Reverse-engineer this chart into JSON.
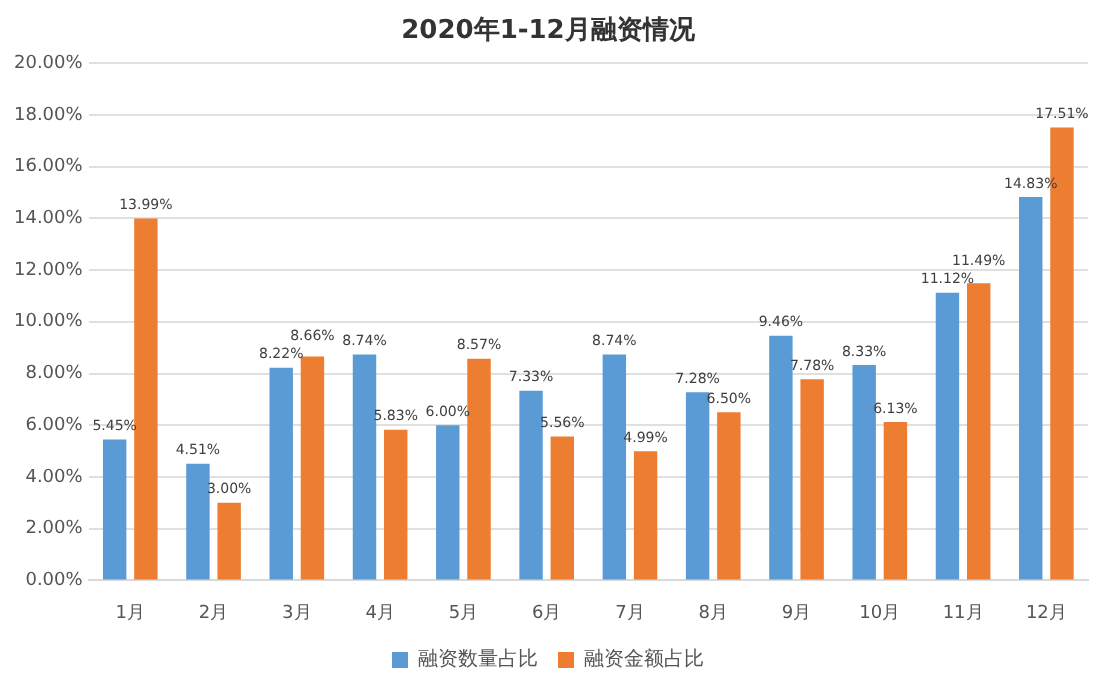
{
  "chart_data": {
    "type": "bar",
    "title": "2020年1-12月融资情况",
    "categories": [
      "1月",
      "2月",
      "3月",
      "4月",
      "5月",
      "6月",
      "7月",
      "8月",
      "9月",
      "10月",
      "11月",
      "12月"
    ],
    "series": [
      {
        "name": "融资数量占比",
        "color": "#5b9bd5",
        "values": [
          5.45,
          4.51,
          8.22,
          8.74,
          6.0,
          7.33,
          8.74,
          7.28,
          9.46,
          8.33,
          11.12,
          14.83
        ],
        "value_labels": [
          "5.45%",
          "4.51%",
          "8.22%",
          "8.74%",
          "6.00%",
          "7.33%",
          "8.74%",
          "7.28%",
          "9.46%",
          "8.33%",
          "11.12%",
          "14.83%"
        ]
      },
      {
        "name": "融资金额占比",
        "color": "#ed7d31",
        "values": [
          13.99,
          3.0,
          8.66,
          5.83,
          8.57,
          5.56,
          4.99,
          6.5,
          7.78,
          6.13,
          11.49,
          17.51
        ],
        "value_labels": [
          "13.99%",
          "3.00%",
          "8.66%",
          "5.83%",
          "8.57%",
          "5.56%",
          "4.99%",
          "6.50%",
          "7.78%",
          "6.13%",
          "11.49%",
          "17.51%"
        ]
      }
    ],
    "ylim": [
      0,
      20
    ],
    "yticks": [
      {
        "value": 0,
        "label": "0.00%"
      },
      {
        "value": 2,
        "label": "2.00%"
      },
      {
        "value": 4,
        "label": "4.00%"
      },
      {
        "value": 6,
        "label": "6.00%"
      },
      {
        "value": 8,
        "label": "8.00%"
      },
      {
        "value": 10,
        "label": "10.00%"
      },
      {
        "value": 12,
        "label": "12.00%"
      },
      {
        "value": 14,
        "label": "14.00%"
      },
      {
        "value": 16,
        "label": "16.00%"
      },
      {
        "value": 18,
        "label": "18.00%"
      },
      {
        "value": 20,
        "label": "20.00%"
      }
    ],
    "grid": "y",
    "legend": "bottom"
  }
}
